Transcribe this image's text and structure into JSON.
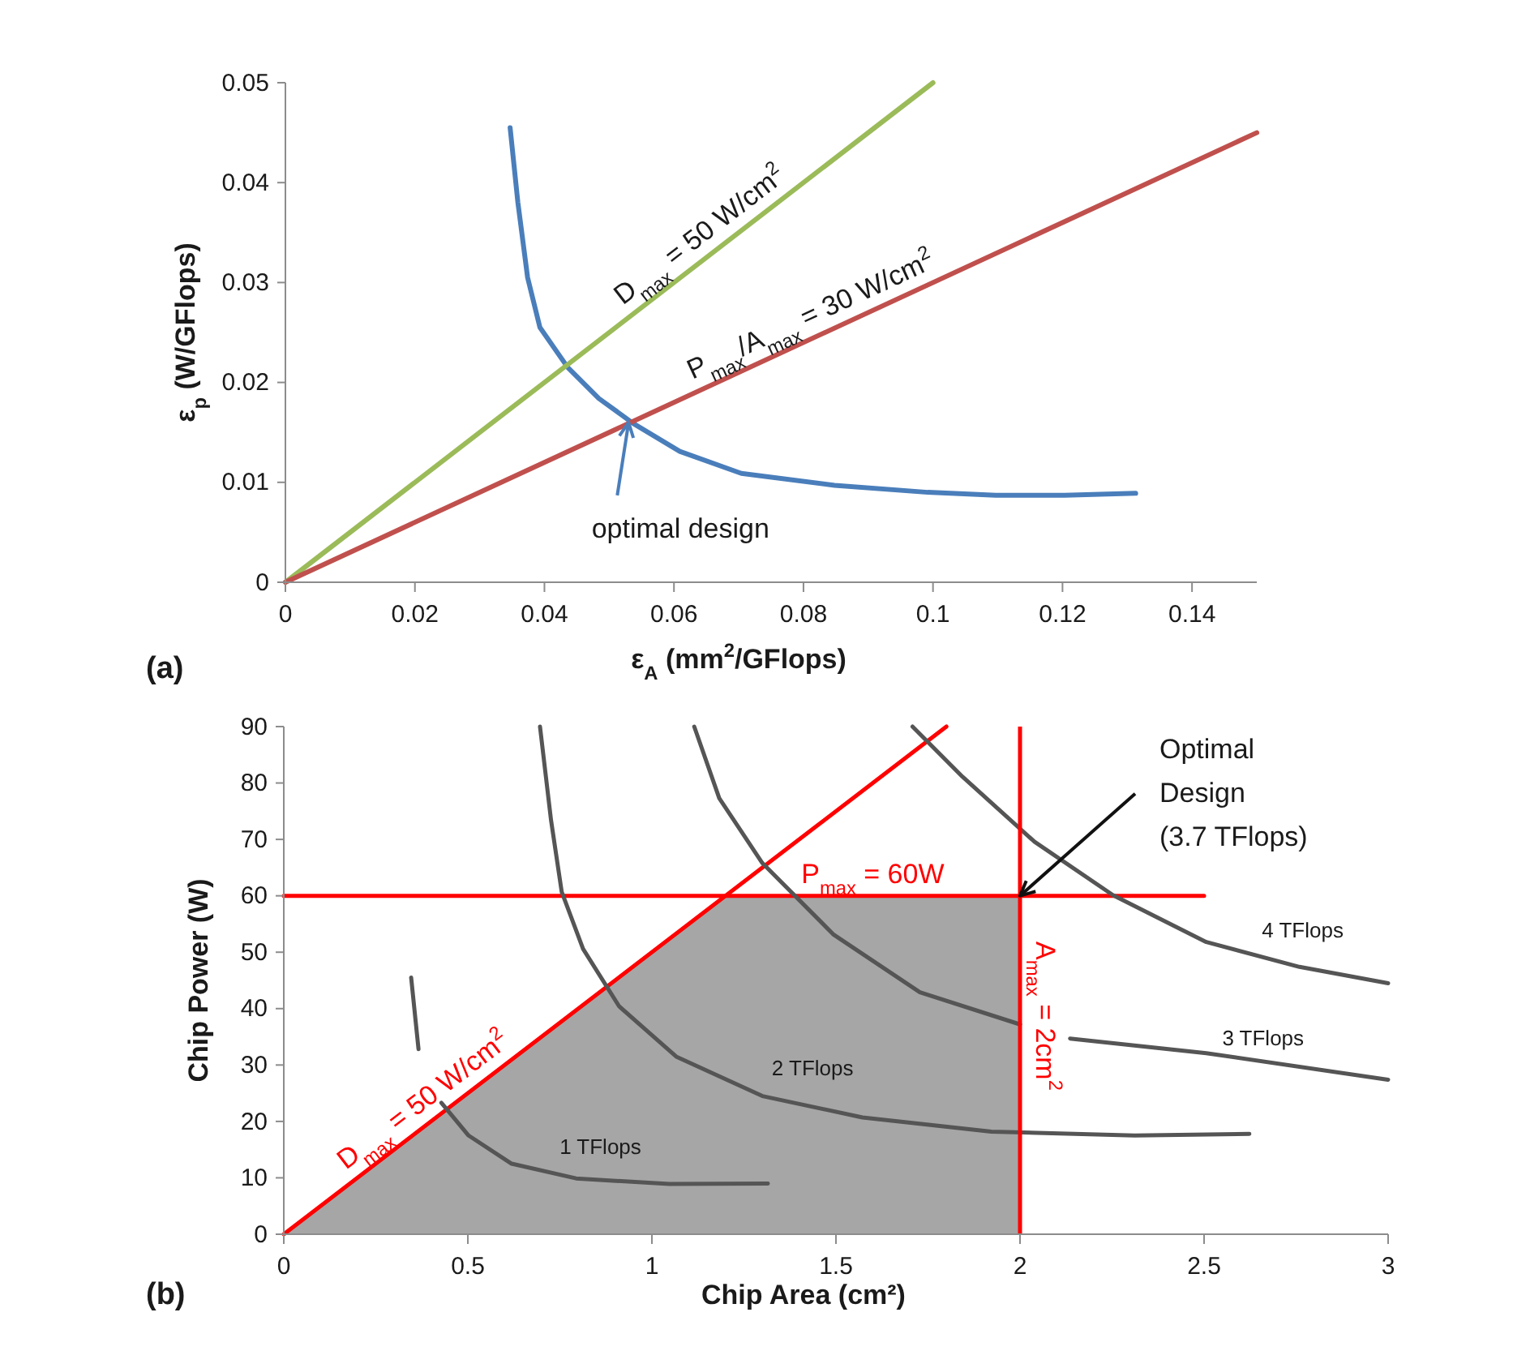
{
  "chart_data": [
    {
      "type": "line",
      "title": "(a)",
      "xlabel": "ε$_{A}$ (mm$^{2}$/GFlops)",
      "ylabel": "ε$_{p}$ (W/GFlops)",
      "xlim": [
        0,
        0.15
      ],
      "xticks": [
        0,
        0.02,
        0.04,
        0.06,
        0.08,
        0.1,
        0.12,
        0.14
      ],
      "ylim": [
        0,
        0.05
      ],
      "yticks": [
        0,
        0.01,
        0.02,
        0.03,
        0.04,
        0.05
      ],
      "annotations": [
        {
          "text": "optimal design",
          "x": 0.053,
          "y": 0.016
        }
      ],
      "series": [
        {
          "color": "#4a7ebb",
          "x": [
            0.0347,
            0.0359,
            0.0374,
            0.0393,
            0.0436,
            0.0484,
            0.0537,
            0.0609,
            0.0704,
            0.0848,
            0.0992,
            0.1097,
            0.1203,
            0.1313
          ],
          "values": [
            0.0455,
            0.038,
            0.0305,
            0.0255,
            0.0215,
            0.0184,
            0.0159,
            0.0131,
            0.0109,
            0.0097,
            0.009,
            0.0087,
            0.0087,
            0.0089
          ]
        },
        {
          "name": "D$_{max}$ = 50 W/cm$^{2}$",
          "color": "#9bbb59",
          "x": [
            0,
            0.1
          ],
          "values": [
            0,
            0.05
          ]
        },
        {
          "name": "P$_{max}$/A$_{max}$ = 30 W/cm$^{2}$",
          "color": "#c0504d",
          "x": [
            0,
            0.15
          ],
          "values": [
            0,
            0.045
          ]
        }
      ]
    },
    {
      "type": "line",
      "title": "(b)",
      "xlabel": "Chip Area (cm²)",
      "ylabel": "Chip Power (W)",
      "xlim": [
        0,
        3
      ],
      "xticks": [
        0,
        0.5,
        1,
        1.5,
        2,
        2.5,
        3
      ],
      "ylim": [
        0,
        90
      ],
      "yticks": [
        0,
        10,
        20,
        30,
        40,
        50,
        60,
        70,
        80,
        90
      ],
      "ref_lines": [
        {
          "axis": "x",
          "value": 2,
          "label": "A$_{max}$ = 2cm$^{2}$",
          "color": "#ff0000"
        }
      ],
      "annotations": [
        {
          "text": "Optimal\nDesign\n(3.7 TFlops)",
          "x": 2,
          "y": 60
        }
      ],
      "series": [
        {
          "type": "area",
          "color": "#a6a6a6",
          "x": [
            0,
            1.2,
            2
          ],
          "values": [
            0,
            60,
            60
          ]
        },
        {
          "name": "D$_{max}$ = 50 W/cm$^{2}$",
          "color": "#ff0000",
          "x": [
            0,
            1.8
          ],
          "values": [
            0,
            90
          ]
        },
        {
          "name": "P$_{max}$ = 60W",
          "color": "#ff0000",
          "x": [
            0,
            2.5
          ],
          "values": [
            60,
            60
          ]
        },
        {
          "name": "1 TFlops",
          "color": "#555555",
          "x": [
            0.346,
            0.366,
            0.4,
            0.428,
            0.502,
            0.619,
            0.794,
            1.047,
            1.315
          ],
          "values": [
            45.5,
            32.8,
            null,
            23.3,
            17.5,
            12.5,
            9.9,
            8.9,
            9.0
          ]
        },
        {
          "name": "2 TFlops",
          "color": "#555555",
          "x": [
            0.696,
            0.726,
            0.755,
            0.813,
            0.911,
            1.066,
            1.3,
            1.572,
            1.922,
            2.311,
            2.623
          ],
          "values": [
            90,
            73.4,
            60.7,
            50.6,
            40.4,
            31.5,
            24.5,
            20.7,
            18.2,
            17.5,
            17.8
          ]
        },
        {
          "name": "3 TFlops",
          "color": "#555555",
          "x": [
            1.115,
            1.183,
            1.3,
            1.494,
            1.728,
            2.0,
            2.07,
            2.136,
            2.506,
            3.0
          ],
          "values": [
            90,
            77.3,
            65.8,
            53.1,
            42.9,
            37.2,
            null,
            34.7,
            32.1,
            27.4
          ]
        },
        {
          "name": "4 TFlops",
          "color": "#555555",
          "x": [
            1.708,
            1.844,
            2.039,
            2.253,
            2.506,
            2.759,
            3.0
          ],
          "values": [
            90,
            81.1,
            69.6,
            60.1,
            51.8,
            47.4,
            44.5
          ]
        }
      ]
    }
  ]
}
